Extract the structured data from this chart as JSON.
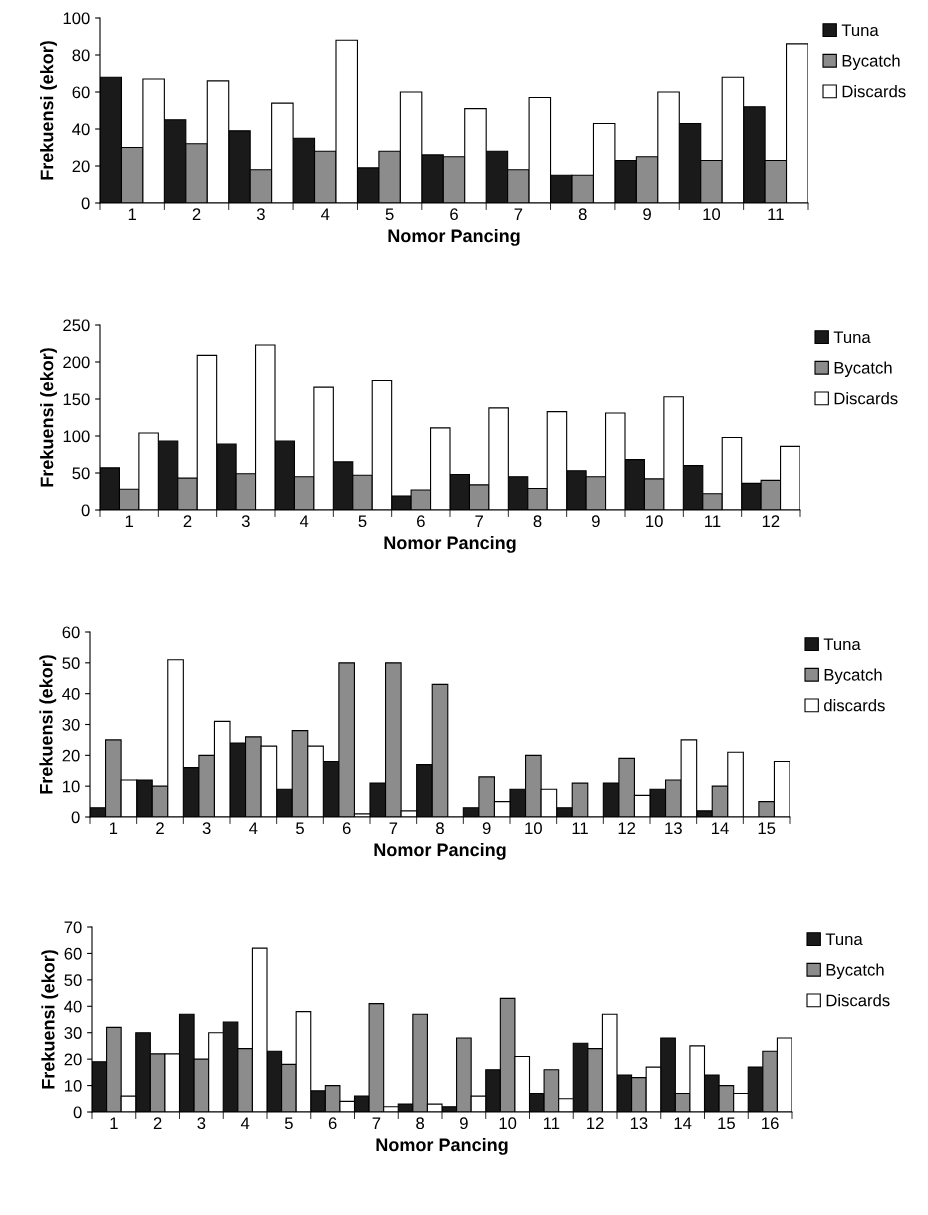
{
  "chart_data": [
    {
      "type": "bar",
      "xlabel": "Nomor Pancing",
      "ylabel": "Frekuensi (ekor)",
      "categories": [
        "1",
        "2",
        "3",
        "4",
        "5",
        "6",
        "7",
        "8",
        "9",
        "10",
        "11"
      ],
      "ylim": [
        0,
        100
      ],
      "yticks": [
        0,
        20,
        40,
        60,
        80,
        100
      ],
      "grid": false,
      "legend": "top right",
      "series": [
        {
          "name": "Tuna",
          "color": "#1a1a1a",
          "values": [
            68,
            45,
            39,
            35,
            19,
            26,
            28,
            15,
            23,
            43,
            52
          ]
        },
        {
          "name": "Bycatch",
          "color": "#8c8c8c",
          "values": [
            30,
            32,
            18,
            28,
            28,
            25,
            18,
            15,
            25,
            23,
            23
          ]
        },
        {
          "name": "Discards",
          "color": "#ffffff",
          "values": [
            67,
            66,
            54,
            88,
            60,
            51,
            57,
            43,
            60,
            68,
            86
          ]
        }
      ]
    },
    {
      "type": "bar",
      "xlabel": "Nomor Pancing",
      "ylabel": "Frekuensi (ekor)",
      "categories": [
        "1",
        "2",
        "3",
        "4",
        "5",
        "6",
        "7",
        "8",
        "9",
        "10",
        "11",
        "12"
      ],
      "ylim": [
        0,
        250
      ],
      "yticks": [
        0,
        50,
        100,
        150,
        200,
        250
      ],
      "grid": false,
      "legend": "top right",
      "series": [
        {
          "name": "Tuna",
          "color": "#1a1a1a",
          "values": [
            57,
            93,
            89,
            93,
            65,
            19,
            48,
            45,
            53,
            68,
            60,
            36
          ]
        },
        {
          "name": "Bycatch",
          "color": "#8c8c8c",
          "values": [
            28,
            43,
            49,
            45,
            47,
            27,
            34,
            29,
            45,
            42,
            22,
            40
          ]
        },
        {
          "name": "Discards",
          "color": "#ffffff",
          "values": [
            104,
            209,
            223,
            166,
            175,
            111,
            138,
            133,
            131,
            153,
            98,
            86
          ]
        }
      ]
    },
    {
      "type": "bar",
      "xlabel": "Nomor Pancing",
      "ylabel": "Frekuensi (ekor)",
      "categories": [
        "1",
        "2",
        "3",
        "4",
        "5",
        "6",
        "7",
        "8",
        "9",
        "10",
        "11",
        "12",
        "13",
        "14",
        "15"
      ],
      "ylim": [
        0,
        60
      ],
      "yticks": [
        0,
        10,
        20,
        30,
        40,
        50,
        60
      ],
      "grid": false,
      "legend": "top right",
      "series": [
        {
          "name": "Tuna",
          "color": "#1a1a1a",
          "values": [
            3,
            12,
            16,
            24,
            9,
            18,
            11,
            17,
            3,
            9,
            3,
            11,
            9,
            2,
            0
          ]
        },
        {
          "name": "Bycatch",
          "color": "#8c8c8c",
          "values": [
            25,
            10,
            20,
            26,
            28,
            50,
            50,
            43,
            13,
            20,
            11,
            19,
            12,
            10,
            5
          ]
        },
        {
          "name": "discards",
          "color": "#ffffff",
          "values": [
            12,
            51,
            31,
            23,
            23,
            1,
            2,
            0,
            5,
            9,
            0,
            7,
            25,
            21,
            18
          ]
        }
      ]
    },
    {
      "type": "bar",
      "xlabel": "Nomor Pancing",
      "ylabel": "Frekuensi (ekor)",
      "categories": [
        "1",
        "2",
        "3",
        "4",
        "5",
        "6",
        "7",
        "8",
        "9",
        "10",
        "11",
        "12",
        "13",
        "14",
        "15",
        "16"
      ],
      "ylim": [
        0,
        70
      ],
      "yticks": [
        0,
        10,
        20,
        30,
        40,
        50,
        60,
        70
      ],
      "grid": false,
      "legend": "top right",
      "series": [
        {
          "name": "Tuna",
          "color": "#1a1a1a",
          "values": [
            19,
            30,
            37,
            34,
            23,
            8,
            6,
            3,
            2,
            16,
            7,
            26,
            14,
            28,
            14,
            17
          ]
        },
        {
          "name": "Bycatch",
          "color": "#8c8c8c",
          "values": [
            32,
            22,
            20,
            24,
            18,
            10,
            41,
            37,
            28,
            43,
            16,
            24,
            13,
            7,
            10,
            23
          ]
        },
        {
          "name": "Discards",
          "color": "#ffffff",
          "values": [
            6,
            22,
            30,
            62,
            38,
            4,
            2,
            3,
            6,
            21,
            5,
            37,
            17,
            25,
            7,
            28
          ]
        }
      ]
    }
  ]
}
